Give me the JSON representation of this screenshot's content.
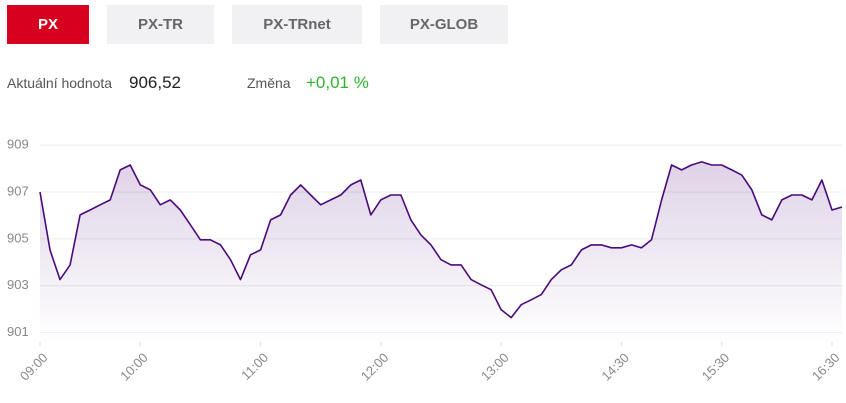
{
  "tabs": [
    "PX",
    "PX-TR",
    "PX-TRnet",
    "PX-GLOB"
  ],
  "info": {
    "value_label": "Aktuální hodnota",
    "value": "906,52",
    "change_label": "Změna",
    "change_value": "+0,01 %"
  },
  "chart_data": {
    "type": "line",
    "x": [
      0,
      1,
      2,
      3,
      4,
      5,
      6,
      7,
      8,
      9,
      10,
      11,
      12,
      13,
      14,
      15,
      16,
      17,
      18,
      19,
      20,
      21,
      22,
      23,
      24,
      25,
      26,
      27,
      28,
      29,
      30,
      31,
      32,
      33,
      34,
      35,
      36,
      37,
      38,
      39,
      40,
      41,
      42,
      43,
      44,
      45,
      46,
      47,
      48,
      49,
      50,
      51,
      52,
      53,
      54,
      55,
      56,
      57,
      58,
      59,
      60,
      61,
      62,
      63,
      64,
      65,
      66,
      67,
      68,
      69,
      70,
      71,
      72,
      73,
      74,
      75,
      76,
      77,
      78,
      79,
      80
    ],
    "series": [
      {
        "name": "PX",
        "color": "#4b0a7a",
        "values": [
          907.0,
          904.53,
          903.26,
          903.89,
          906.02,
          906.23,
          906.45,
          906.66,
          907.94,
          908.15,
          907.3,
          907.09,
          906.45,
          906.66,
          906.23,
          905.6,
          904.96,
          904.96,
          904.74,
          904.11,
          903.26,
          904.32,
          904.53,
          905.81,
          906.02,
          906.87,
          907.3,
          906.87,
          906.45,
          906.66,
          906.87,
          907.3,
          907.51,
          906.02,
          906.66,
          906.87,
          906.87,
          905.81,
          905.17,
          904.74,
          904.11,
          903.89,
          903.89,
          903.26,
          903.04,
          902.83,
          901.98,
          901.64,
          902.19,
          902.4,
          902.62,
          903.26,
          903.68,
          903.89,
          904.53,
          904.74,
          904.74,
          904.62,
          904.62,
          904.74,
          904.62,
          904.96,
          906.66,
          908.15,
          907.94,
          908.15,
          908.28,
          908.15,
          908.15,
          907.94,
          907.72,
          907.09,
          906.02,
          905.81,
          906.66,
          906.87,
          906.87,
          906.66,
          907.51,
          906.23,
          906.36
        ]
      }
    ],
    "xlim": [
      0,
      80
    ],
    "xticks": [
      {
        "value": 0,
        "label": "09:00"
      },
      {
        "value": 10,
        "label": "10:00"
      },
      {
        "value": 22,
        "label": "11:00"
      },
      {
        "value": 34,
        "label": "12:00"
      },
      {
        "value": 46,
        "label": "13:00"
      },
      {
        "value": 58,
        "label": "14:30"
      },
      {
        "value": 68,
        "label": "15:30"
      },
      {
        "value": 79,
        "label": "16:30"
      }
    ],
    "ylim": [
      900.6,
      909.6
    ],
    "yticks": [
      901,
      903,
      905,
      907,
      909
    ],
    "grid": true
  }
}
